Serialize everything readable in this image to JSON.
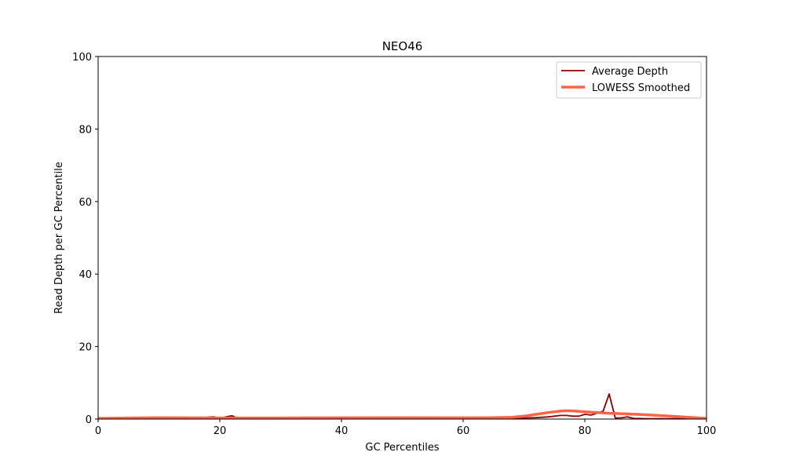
{
  "chart_data": {
    "type": "line",
    "title": "NEO46",
    "xlabel": "GC Percentiles",
    "ylabel": "Read Depth per GC Percentile",
    "xlim": [
      0,
      100
    ],
    "ylim": [
      0,
      100
    ],
    "xticks": [
      "0",
      "20",
      "40",
      "60",
      "80",
      "100"
    ],
    "yticks": [
      "0",
      "20",
      "40",
      "60",
      "80",
      "100"
    ],
    "grid": false,
    "legend_position": "top-right",
    "series": [
      {
        "name": "Average Depth",
        "color": "#8b0000",
        "x": [
          0,
          5,
          10,
          15,
          17,
          18,
          19,
          20,
          21,
          22,
          23,
          25,
          30,
          40,
          50,
          60,
          65,
          68,
          70,
          72,
          74,
          75,
          76,
          77,
          78,
          79,
          80,
          81,
          82,
          83,
          84,
          85,
          86,
          87,
          88,
          90,
          92,
          95,
          100
        ],
        "y": [
          0.1,
          0.2,
          0.25,
          0.2,
          0.2,
          0.5,
          0.6,
          0.2,
          0.6,
          0.9,
          0.2,
          0.2,
          0.2,
          0.2,
          0.2,
          0.2,
          0.2,
          0.25,
          0.3,
          0.4,
          0.6,
          0.8,
          1.0,
          1.0,
          0.8,
          0.8,
          1.3,
          1.1,
          1.6,
          2.2,
          6.9,
          0.3,
          0.35,
          0.6,
          0.2,
          0.1,
          0.1,
          0.1,
          0.1
        ]
      },
      {
        "name": "LOWESS Smoothed",
        "color": "#ff6347",
        "x": [
          0,
          5,
          10,
          15,
          20,
          25,
          30,
          40,
          50,
          60,
          65,
          68,
          70,
          72,
          74,
          76,
          77,
          78,
          80,
          82,
          84,
          86,
          88,
          90,
          92,
          94,
          96,
          98,
          100
        ],
        "y": [
          0.2,
          0.3,
          0.4,
          0.35,
          0.3,
          0.3,
          0.3,
          0.35,
          0.4,
          0.35,
          0.4,
          0.5,
          0.8,
          1.3,
          1.8,
          2.2,
          2.3,
          2.25,
          2.0,
          1.8,
          1.6,
          1.5,
          1.35,
          1.2,
          1.0,
          0.8,
          0.6,
          0.4,
          0.2
        ]
      }
    ]
  }
}
